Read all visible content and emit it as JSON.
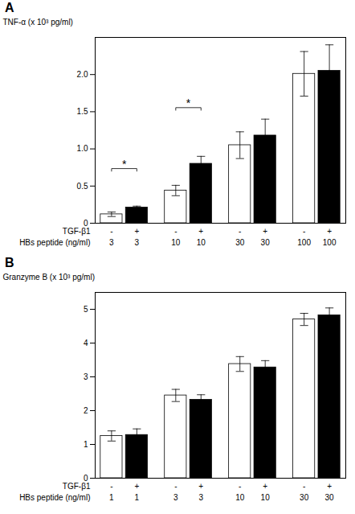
{
  "chart_data": [
    {
      "type": "bar",
      "title": "A",
      "ylabel": "TNF-α (x 10³ pg/ml)",
      "category_rows": [
        {
          "name": "TGF-β1",
          "labels": [
            "-",
            "+",
            "-",
            "+",
            "-",
            "+",
            "-",
            "+"
          ]
        },
        {
          "name": "HBs peptide (ng/ml)",
          "labels": [
            "3",
            "3",
            "10",
            "10",
            "30",
            "30",
            "100",
            "100"
          ]
        }
      ],
      "values": [
        0.12,
        0.21,
        0.44,
        0.8,
        1.05,
        1.18,
        2.01,
        2.05
      ],
      "errors": [
        0.03,
        0.02,
        0.07,
        0.1,
        0.18,
        0.22,
        0.3,
        0.35
      ],
      "colors": [
        "white",
        "black",
        "white",
        "black",
        "white",
        "black",
        "white",
        "black"
      ],
      "ylim": [
        0,
        2.5
      ],
      "yticks": [
        0,
        0.5,
        {
          "value": 1,
          "label": "1.0"
        },
        1.5,
        {
          "value": 2,
          "label": "2.0"
        }
      ],
      "annotations": [
        {
          "type": "bracket",
          "from": 0,
          "to": 1,
          "y": 0.7,
          "label": "*"
        },
        {
          "type": "bracket",
          "from": 2,
          "to": 3,
          "y": 1.52,
          "label": "*"
        }
      ],
      "grid": false
    },
    {
      "type": "bar",
      "title": "B",
      "ylabel": "Granzyme B (x 10³ pg/ml)",
      "category_rows": [
        {
          "name": "TGF-β1",
          "labels": [
            "-",
            "+",
            "-",
            "+",
            "-",
            "+",
            "-",
            "+"
          ]
        },
        {
          "name": "HBs peptide (ng/ml)",
          "labels": [
            "1",
            "1",
            "3",
            "3",
            "10",
            "10",
            "30",
            "30"
          ]
        }
      ],
      "values": [
        1.25,
        1.28,
        2.45,
        2.32,
        3.38,
        3.28,
        4.7,
        4.82
      ],
      "errors": [
        0.15,
        0.18,
        0.18,
        0.15,
        0.22,
        0.2,
        0.18,
        0.22
      ],
      "colors": [
        "white",
        "black",
        "white",
        "black",
        "white",
        "black",
        "white",
        "black"
      ],
      "ylim": [
        0,
        5.5
      ],
      "yticks": [
        0,
        1,
        2,
        3,
        4,
        5
      ],
      "grid": false
    }
  ]
}
